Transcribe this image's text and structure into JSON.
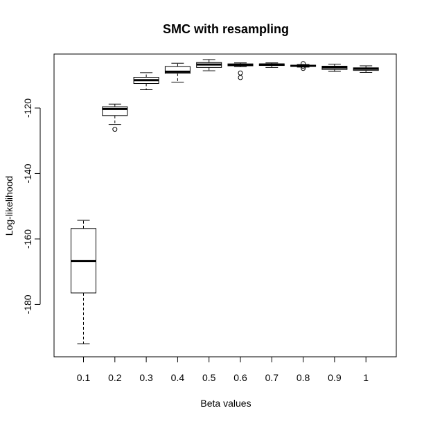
{
  "chart_data": {
    "type": "boxplot",
    "title": "SMC with resampling",
    "xlabel": "Beta values",
    "ylabel": "Log-likelihood",
    "ylim": [
      -196,
      -103.5
    ],
    "y_ticks": [
      -180,
      -160,
      -140,
      -120
    ],
    "grid": false,
    "legend": "none",
    "categories": [
      "0.1",
      "0.2",
      "0.3",
      "0.4",
      "0.5",
      "0.6",
      "0.7",
      "0.8",
      "0.9",
      "1"
    ],
    "boxes": [
      {
        "whisker_low": -192.0,
        "q1": -176.5,
        "median": -166.7,
        "q3": -156.8,
        "whisker_high": -154.3,
        "outliers": []
      },
      {
        "whisker_low": -125.0,
        "q1": -122.3,
        "median": -120.3,
        "q3": -119.6,
        "whisker_high": -118.8,
        "outliers": [
          -126.5
        ]
      },
      {
        "whisker_low": -114.4,
        "q1": -112.5,
        "median": -111.5,
        "q3": -110.6,
        "whisker_high": -109.2,
        "outliers": []
      },
      {
        "whisker_low": -112.1,
        "q1": -109.4,
        "median": -108.9,
        "q3": -107.3,
        "whisker_high": -106.3,
        "outliers": []
      },
      {
        "whisker_low": -108.6,
        "q1": -107.6,
        "median": -106.7,
        "q3": -106.1,
        "whisker_high": -105.2,
        "outliers": []
      },
      {
        "whisker_low": -107.4,
        "q1": -107.1,
        "median": -106.8,
        "q3": -106.5,
        "whisker_high": -106.2,
        "outliers": [
          -109.3,
          -110.7
        ]
      },
      {
        "whisker_low": -107.6,
        "q1": -107.0,
        "median": -106.7,
        "q3": -106.5,
        "whisker_high": -106.2,
        "outliers": []
      },
      {
        "whisker_low": -107.5,
        "q1": -107.3,
        "median": -107.1,
        "q3": -106.9,
        "whisker_high": -106.7,
        "outliers": [
          -107.9,
          -107.3,
          -106.4
        ]
      },
      {
        "whisker_low": -108.8,
        "q1": -108.2,
        "median": -107.6,
        "q3": -107.2,
        "whisker_high": -106.6,
        "outliers": []
      },
      {
        "whisker_low": -109.1,
        "q1": -108.5,
        "median": -108.0,
        "q3": -107.7,
        "whisker_high": -107.1,
        "outliers": []
      }
    ]
  }
}
